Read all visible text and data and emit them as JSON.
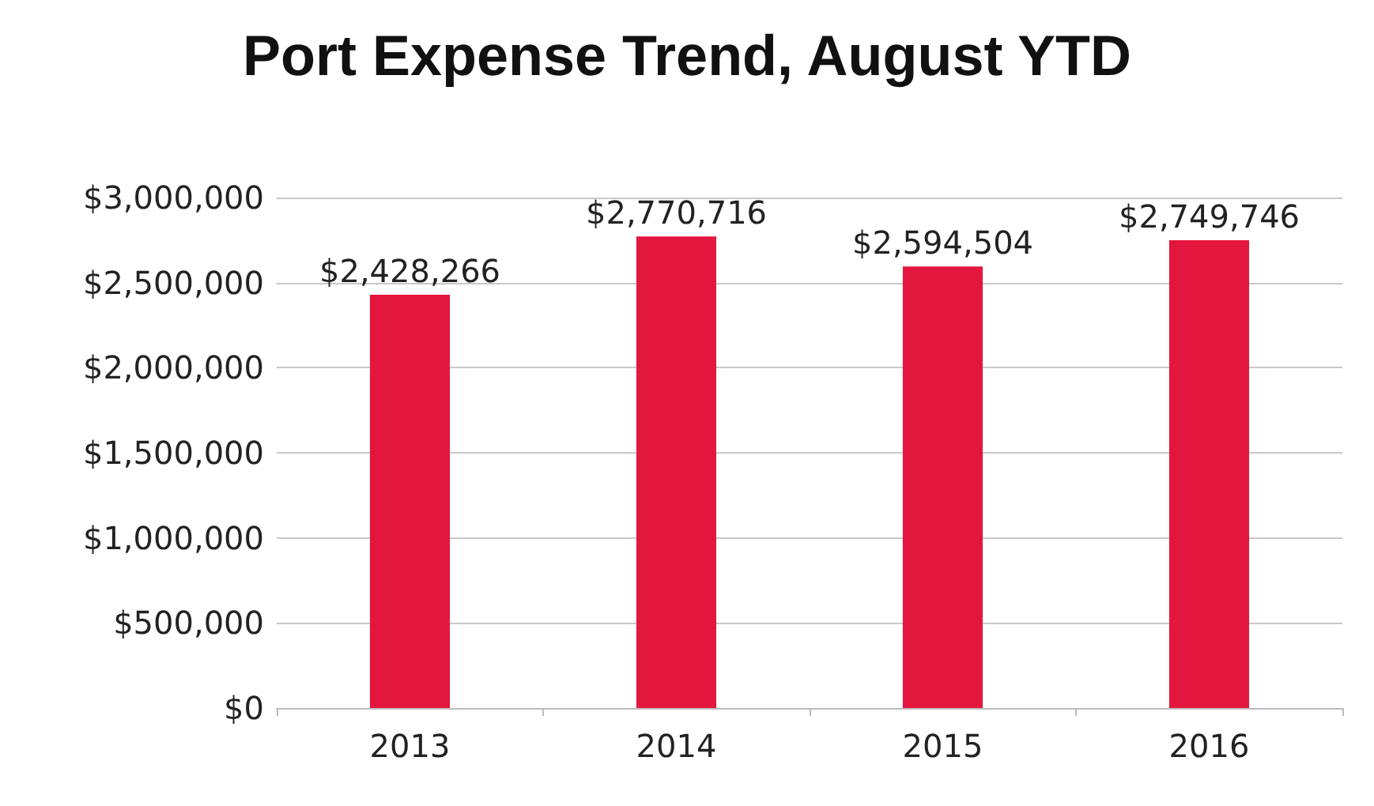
{
  "chart_data": {
    "type": "bar",
    "title": "Port Expense Trend, August YTD",
    "categories": [
      "2013",
      "2014",
      "2015",
      "2016"
    ],
    "values": [
      2428266,
      2770716,
      2594504,
      2749746
    ],
    "value_labels": [
      "$2,428,266",
      "$2,770,716",
      "$2,594,504",
      "$2,749,746"
    ],
    "color": "#e3173e",
    "ylim": [
      0,
      3000000
    ],
    "yticks": [
      {
        "value": 0,
        "label": "$0"
      },
      {
        "value": 500000,
        "label": "$500,000"
      },
      {
        "value": 1000000,
        "label": "$1,000,000"
      },
      {
        "value": 1500000,
        "label": "$1,500,000"
      },
      {
        "value": 2000000,
        "label": "$2,000,000"
      },
      {
        "value": 2500000,
        "label": "$2,500,000"
      },
      {
        "value": 3000000,
        "label": "$3,000,000"
      }
    ],
    "grid": "y"
  }
}
